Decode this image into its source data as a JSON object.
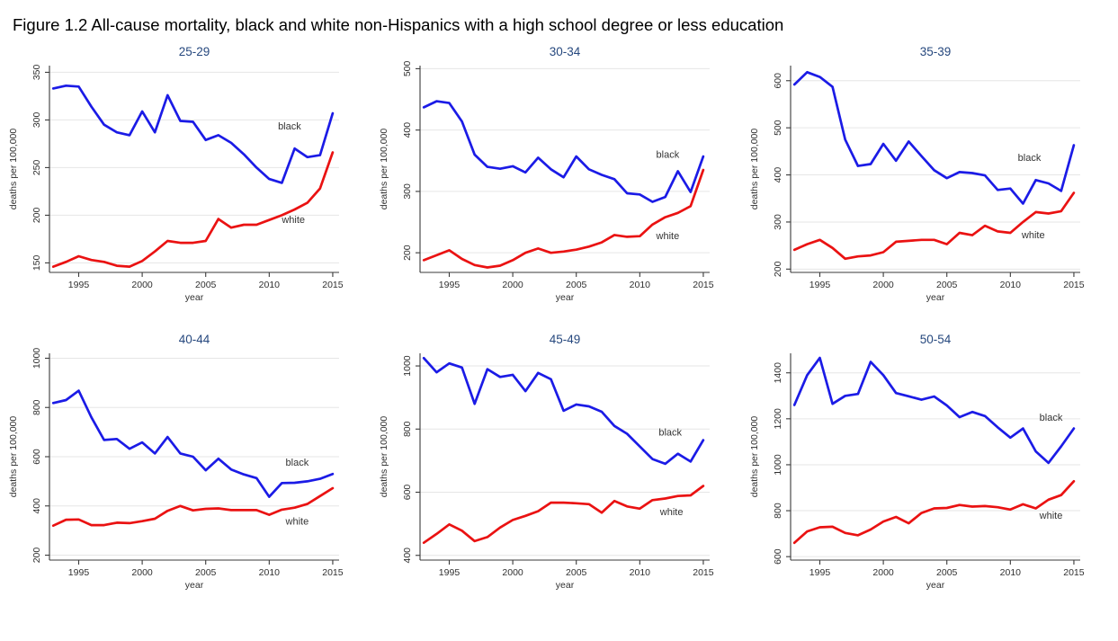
{
  "figure": {
    "title": "Figure 1.2 All-cause mortality, black and white non-Hispanics with a high school degree or less education"
  },
  "colors": {
    "black_series": "#1b1be6",
    "white_series": "#ea1212",
    "subplot_title": "#26487e",
    "gridline": "#e6e6e6",
    "axis": "#3a3a3a",
    "tick_label": "#303030",
    "series_label": "#333333"
  },
  "chart_data": [
    {
      "type": "line",
      "title": "25-29",
      "xlabel": "year",
      "ylabel": "deaths per 100,000",
      "x": [
        1993,
        1994,
        1995,
        1996,
        1997,
        1998,
        1999,
        2000,
        2001,
        2002,
        2003,
        2004,
        2005,
        2006,
        2007,
        2008,
        2009,
        2010,
        2011,
        2012,
        2013,
        2014,
        2015
      ],
      "xticks": [
        1995,
        2000,
        2005,
        2010,
        2015
      ],
      "yticks": [
        150,
        200,
        250,
        300,
        350
      ],
      "xlim": [
        1992.7,
        2015.5
      ],
      "ylim": [
        140,
        357
      ],
      "grid": true,
      "legend_position": "inline-labels",
      "series": [
        {
          "name": "black",
          "color_key": "black_series",
          "label_x": 2011.6,
          "label_y": 290,
          "values": [
            333,
            336,
            335,
            314,
            295,
            287,
            284,
            309,
            287,
            326,
            299,
            298,
            279,
            284,
            276,
            264,
            250,
            238,
            234,
            270,
            261,
            263,
            307
          ]
        },
        {
          "name": "white",
          "color_key": "white_series",
          "label_x": 2011.9,
          "label_y": 192,
          "values": [
            146,
            151,
            157,
            153,
            151,
            147,
            146,
            152,
            162,
            173,
            171,
            171,
            173,
            196,
            187,
            190,
            190,
            195,
            200,
            206,
            213,
            228,
            266
          ]
        }
      ]
    },
    {
      "type": "line",
      "title": "30-34",
      "xlabel": "year",
      "ylabel": "deaths per 100,000",
      "x": [
        1993,
        1994,
        1995,
        1996,
        1997,
        1998,
        1999,
        2000,
        2001,
        2002,
        2003,
        2004,
        2005,
        2006,
        2007,
        2008,
        2009,
        2010,
        2011,
        2012,
        2013,
        2014,
        2015
      ],
      "xticks": [
        1995,
        2000,
        2005,
        2010,
        2015
      ],
      "yticks": [
        200,
        300,
        400,
        500
      ],
      "xlim": [
        1992.7,
        2015.5
      ],
      "ylim": [
        168,
        505
      ],
      "grid": true,
      "legend_position": "inline-labels",
      "series": [
        {
          "name": "black",
          "color_key": "black_series",
          "label_x": 2012.2,
          "label_y": 355,
          "values": [
            437,
            447,
            444,
            414,
            360,
            340,
            337,
            341,
            331,
            355,
            336,
            323,
            357,
            336,
            327,
            320,
            297,
            295,
            283,
            291,
            333,
            299,
            357
          ]
        },
        {
          "name": "white",
          "color_key": "white_series",
          "label_x": 2012.2,
          "label_y": 222,
          "values": [
            188,
            196,
            204,
            190,
            180,
            176,
            179,
            188,
            200,
            207,
            200,
            202,
            205,
            210,
            217,
            229,
            226,
            227,
            246,
            258,
            265,
            276,
            335
          ]
        }
      ]
    },
    {
      "type": "line",
      "title": "35-39",
      "xlabel": "year",
      "ylabel": "deaths per 100,000",
      "x": [
        1993,
        1994,
        1995,
        1996,
        1997,
        1998,
        1999,
        2000,
        2001,
        2002,
        2003,
        2004,
        2005,
        2006,
        2007,
        2008,
        2009,
        2010,
        2011,
        2012,
        2013,
        2014,
        2015
      ],
      "xticks": [
        1995,
        2000,
        2005,
        2010,
        2015
      ],
      "yticks": [
        200,
        300,
        400,
        500,
        600
      ],
      "xlim": [
        1992.7,
        2015.5
      ],
      "ylim": [
        193,
        632
      ],
      "grid": true,
      "legend_position": "inline-labels",
      "series": [
        {
          "name": "black",
          "color_key": "black_series",
          "label_x": 2011.5,
          "label_y": 430,
          "values": [
            592,
            618,
            608,
            587,
            475,
            419,
            423,
            466,
            430,
            471,
            440,
            410,
            393,
            406,
            404,
            399,
            368,
            371,
            339,
            389,
            382,
            366,
            463
          ]
        },
        {
          "name": "white",
          "color_key": "white_series",
          "label_x": 2011.8,
          "label_y": 266,
          "values": [
            241,
            253,
            262,
            245,
            222,
            227,
            229,
            236,
            258,
            260,
            262,
            262,
            253,
            277,
            272,
            292,
            280,
            277,
            300,
            321,
            318,
            323,
            362
          ]
        }
      ]
    },
    {
      "type": "line",
      "title": "40-44",
      "xlabel": "year",
      "ylabel": "deaths per 100,000",
      "x": [
        1993,
        1994,
        1995,
        1996,
        1997,
        1998,
        1999,
        2000,
        2001,
        2002,
        2003,
        2004,
        2005,
        2006,
        2007,
        2008,
        2009,
        2010,
        2011,
        2012,
        2013,
        2014,
        2015
      ],
      "xticks": [
        1995,
        2000,
        2005,
        2010,
        2015
      ],
      "yticks": [
        200,
        400,
        600,
        800,
        1000
      ],
      "xlim": [
        1992.7,
        2015.5
      ],
      "ylim": [
        180,
        1020
      ],
      "grid": true,
      "legend_position": "inline-labels",
      "series": [
        {
          "name": "black",
          "color_key": "black_series",
          "label_x": 2012.2,
          "label_y": 564,
          "values": [
            818,
            830,
            868,
            760,
            668,
            672,
            632,
            658,
            613,
            680,
            613,
            600,
            545,
            592,
            548,
            528,
            513,
            437,
            493,
            494,
            500,
            510,
            530
          ]
        },
        {
          "name": "white",
          "color_key": "white_series",
          "label_x": 2012.2,
          "label_y": 325,
          "values": [
            320,
            344,
            345,
            322,
            322,
            332,
            330,
            338,
            348,
            380,
            400,
            382,
            388,
            390,
            383,
            383,
            383,
            364,
            385,
            393,
            408,
            440,
            472
          ]
        }
      ]
    },
    {
      "type": "line",
      "title": "45-49",
      "xlabel": "year",
      "ylabel": "deaths per 100,000",
      "x": [
        1993,
        1994,
        1995,
        1996,
        1997,
        1998,
        1999,
        2000,
        2001,
        2002,
        2003,
        2004,
        2005,
        2006,
        2007,
        2008,
        2009,
        2010,
        2011,
        2012,
        2013,
        2014,
        2015
      ],
      "xticks": [
        1995,
        2000,
        2005,
        2010,
        2015
      ],
      "yticks": [
        400,
        600,
        800,
        1000
      ],
      "xlim": [
        1992.7,
        2015.5
      ],
      "ylim": [
        385,
        1040
      ],
      "grid": true,
      "legend_position": "inline-labels",
      "series": [
        {
          "name": "black",
          "color_key": "black_series",
          "label_x": 2012.4,
          "label_y": 780,
          "values": [
            1025,
            980,
            1008,
            995,
            880,
            990,
            965,
            972,
            920,
            978,
            958,
            858,
            878,
            872,
            855,
            810,
            785,
            745,
            705,
            690,
            722,
            697,
            765
          ]
        },
        {
          "name": "white",
          "color_key": "white_series",
          "label_x": 2012.5,
          "label_y": 527,
          "values": [
            440,
            468,
            498,
            478,
            445,
            458,
            488,
            512,
            525,
            540,
            567,
            567,
            565,
            562,
            535,
            572,
            555,
            548,
            575,
            580,
            588,
            590,
            620
          ]
        }
      ]
    },
    {
      "type": "line",
      "title": "50-54",
      "xlabel": "year",
      "ylabel": "deaths per 100,000",
      "x": [
        1993,
        1994,
        1995,
        1996,
        1997,
        1998,
        1999,
        2000,
        2001,
        2002,
        2003,
        2004,
        2005,
        2006,
        2007,
        2008,
        2009,
        2010,
        2011,
        2012,
        2013,
        2014,
        2015
      ],
      "xticks": [
        1995,
        2000,
        2005,
        2010,
        2015
      ],
      "yticks": [
        600,
        800,
        1000,
        1200,
        1400
      ],
      "xlim": [
        1992.7,
        2015.5
      ],
      "ylim": [
        585,
        1485
      ],
      "grid": true,
      "legend_position": "inline-labels",
      "series": [
        {
          "name": "black",
          "color_key": "black_series",
          "label_x": 2013.2,
          "label_y": 1192,
          "values": [
            1260,
            1390,
            1465,
            1265,
            1300,
            1308,
            1448,
            1390,
            1312,
            1298,
            1283,
            1297,
            1258,
            1207,
            1230,
            1212,
            1163,
            1118,
            1158,
            1058,
            1008,
            1080,
            1158
          ]
        },
        {
          "name": "white",
          "color_key": "white_series",
          "label_x": 2013.2,
          "label_y": 765,
          "values": [
            660,
            710,
            728,
            730,
            703,
            693,
            718,
            753,
            773,
            745,
            790,
            810,
            812,
            825,
            818,
            820,
            815,
            805,
            828,
            810,
            848,
            868,
            928
          ]
        }
      ]
    }
  ]
}
